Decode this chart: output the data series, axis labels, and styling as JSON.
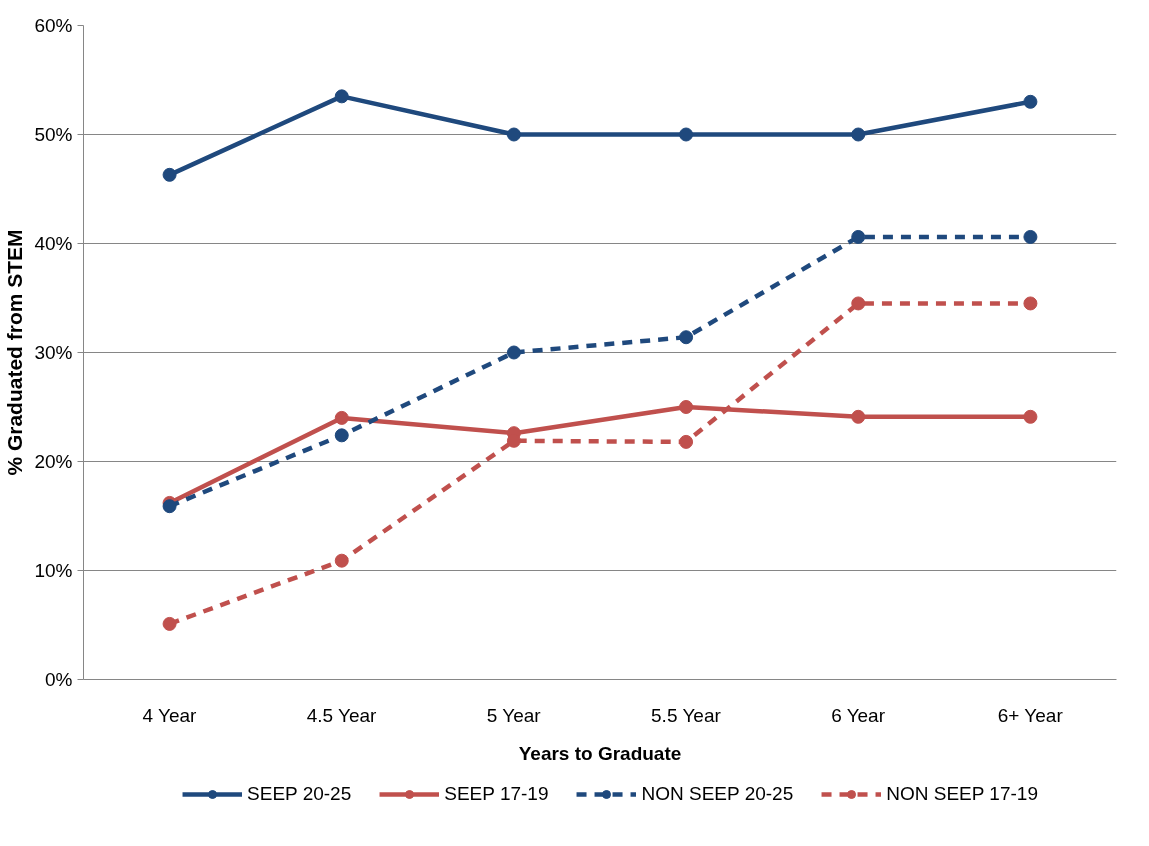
{
  "chart_data": {
    "type": "line",
    "xlabel": "Years to Graduate",
    "ylabel": "% Graduated from STEM",
    "categories": [
      "4 Year",
      "4.5 Year",
      "5 Year",
      "5.5 Year",
      "6 Year",
      "6+ Year"
    ],
    "series": [
      {
        "name": "SEEP 20-25",
        "color": "#1f497d",
        "line_style": "solid",
        "values": [
          46.3,
          53.5,
          50,
          50,
          50,
          53.0
        ]
      },
      {
        "name": "SEEP 17-19",
        "color": "#c0504d",
        "line_style": "solid",
        "values": [
          16.2,
          24.0,
          22.6,
          25.0,
          24.1,
          24.1
        ]
      },
      {
        "name": "NON SEEP 20-25",
        "color": "#1f497d",
        "line_style": "dashed",
        "values": [
          15.9,
          22.4,
          30.0,
          31.4,
          40.6,
          40.6
        ]
      },
      {
        "name": "NON SEEP 17-19",
        "color": "#c0504d",
        "line_style": "dashed",
        "values": [
          5.1,
          10.9,
          21.9,
          21.8,
          34.5,
          34.5
        ]
      }
    ],
    "ylim": [
      0,
      60
    ],
    "yticks": [
      {
        "value": 0,
        "label": "0%"
      },
      {
        "value": 10,
        "label": "10%"
      },
      {
        "value": 20,
        "label": "20%"
      },
      {
        "value": 30,
        "label": "30%"
      },
      {
        "value": 40,
        "label": "40%"
      },
      {
        "value": 50,
        "label": "50%"
      },
      {
        "value": 60,
        "label": "60%"
      }
    ],
    "grid": "y",
    "legend": "bottom",
    "marker": "circle"
  }
}
